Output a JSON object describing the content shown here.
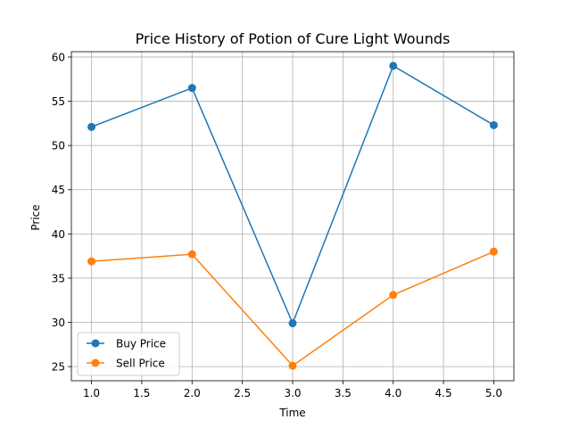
{
  "chart_data": {
    "type": "line",
    "title": "Price History of Potion of Cure Light Wounds",
    "xlabel": "Time",
    "ylabel": "Price",
    "x": [
      1.0,
      2.0,
      3.0,
      4.0,
      5.0
    ],
    "xlim": [
      0.8,
      5.2
    ],
    "ylim": [
      23.4,
      60.6
    ],
    "xticks": [
      1.0,
      1.5,
      2.0,
      2.5,
      3.0,
      3.5,
      4.0,
      4.5,
      5.0
    ],
    "xtick_labels": [
      "1.0",
      "1.5",
      "2.0",
      "2.5",
      "3.0",
      "3.5",
      "4.0",
      "4.5",
      "5.0"
    ],
    "yticks": [
      25,
      30,
      35,
      40,
      45,
      50,
      55,
      60
    ],
    "ytick_labels": [
      "25",
      "30",
      "35",
      "40",
      "45",
      "50",
      "55",
      "60"
    ],
    "grid": true,
    "legend_position": "lower-left",
    "series": [
      {
        "name": "Buy Price",
        "color": "#1f77b4",
        "values": [
          52.1,
          56.5,
          29.9,
          59.0,
          52.3
        ]
      },
      {
        "name": "Sell Price",
        "color": "#ff7f0e",
        "values": [
          36.9,
          37.7,
          25.1,
          33.1,
          38.0
        ]
      }
    ]
  }
}
